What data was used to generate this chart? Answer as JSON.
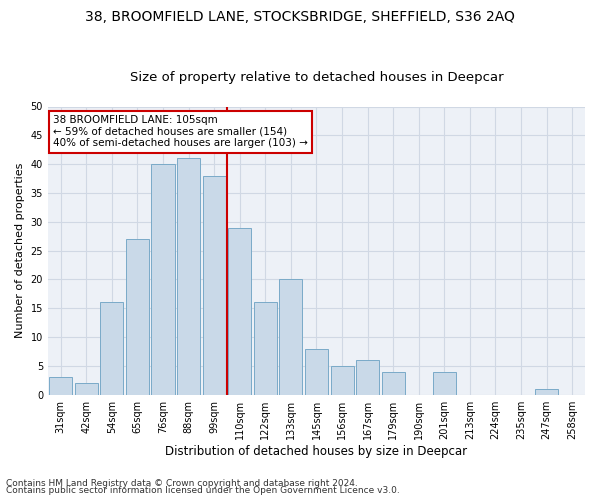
{
  "title1": "38, BROOMFIELD LANE, STOCKSBRIDGE, SHEFFIELD, S36 2AQ",
  "title2": "Size of property relative to detached houses in Deepcar",
  "xlabel": "Distribution of detached houses by size in Deepcar",
  "ylabel": "Number of detached properties",
  "categories": [
    "31sqm",
    "42sqm",
    "54sqm",
    "65sqm",
    "76sqm",
    "88sqm",
    "99sqm",
    "110sqm",
    "122sqm",
    "133sqm",
    "145sqm",
    "156sqm",
    "167sqm",
    "179sqm",
    "190sqm",
    "201sqm",
    "213sqm",
    "224sqm",
    "235sqm",
    "247sqm",
    "258sqm"
  ],
  "values": [
    3,
    2,
    16,
    27,
    40,
    41,
    38,
    29,
    16,
    20,
    8,
    5,
    6,
    4,
    0,
    4,
    0,
    0,
    0,
    1,
    0
  ],
  "bar_color": "#c9d9e8",
  "bar_edge_color": "#7aaac8",
  "vline_color": "#cc0000",
  "annotation_text": "38 BROOMFIELD LANE: 105sqm\n← 59% of detached houses are smaller (154)\n40% of semi-detached houses are larger (103) →",
  "annotation_box_color": "#ffffff",
  "annotation_box_edge_color": "#cc0000",
  "ylim": [
    0,
    50
  ],
  "yticks": [
    0,
    5,
    10,
    15,
    20,
    25,
    30,
    35,
    40,
    45,
    50
  ],
  "grid_color": "#d0d8e4",
  "background_color": "#edf1f7",
  "footer1": "Contains HM Land Registry data © Crown copyright and database right 2024.",
  "footer2": "Contains public sector information licensed under the Open Government Licence v3.0.",
  "title1_fontsize": 10,
  "title2_fontsize": 9.5,
  "xlabel_fontsize": 8.5,
  "ylabel_fontsize": 8,
  "tick_fontsize": 7,
  "footer_fontsize": 6.5,
  "annotation_fontsize": 7.5
}
